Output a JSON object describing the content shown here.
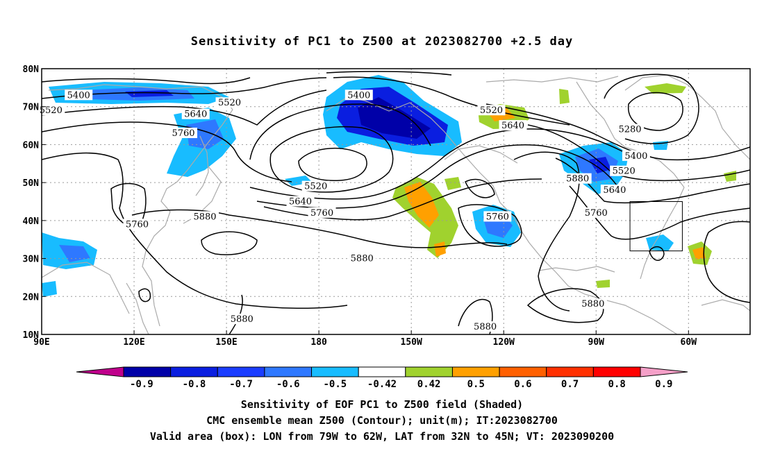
{
  "title": "Sensitivity of PC1 to Z500 at 2023082700 +2.5 day",
  "map": {
    "lat_labels": [
      "80N",
      "70N",
      "60N",
      "50N",
      "40N",
      "30N",
      "20N",
      "10N"
    ],
    "lon_labels": [
      "90E",
      "120E",
      "150E",
      "180",
      "150W",
      "120W",
      "90W",
      "60W"
    ],
    "lon_range": [
      90,
      320
    ],
    "lat_range": [
      10,
      80
    ],
    "grid": "dotted",
    "colors": {
      "contour": "#000000",
      "coastline": "#aaaaaa",
      "grid": "#999999",
      "box": "#000000"
    },
    "contour_labels": [
      {
        "text": "5400",
        "lon": 102,
        "lat": 73
      },
      {
        "text": "5520",
        "lon": 93,
        "lat": 69
      },
      {
        "text": "5520",
        "lon": 151,
        "lat": 71
      },
      {
        "text": "5640",
        "lon": 140,
        "lat": 68
      },
      {
        "text": "5760",
        "lon": 136,
        "lat": 63
      },
      {
        "text": "5760",
        "lon": 121,
        "lat": 39
      },
      {
        "text": "5880",
        "lon": 143,
        "lat": 41
      },
      {
        "text": "5880",
        "lon": 155,
        "lat": 14
      },
      {
        "text": "5400",
        "lon": 193,
        "lat": 73
      },
      {
        "text": "5520",
        "lon": 236,
        "lat": 69
      },
      {
        "text": "5640",
        "lon": 243,
        "lat": 65
      },
      {
        "text": "5520",
        "lon": 179,
        "lat": 49
      },
      {
        "text": "5640",
        "lon": 174,
        "lat": 45
      },
      {
        "text": "5760",
        "lon": 181,
        "lat": 42
      },
      {
        "text": "5880",
        "lon": 194,
        "lat": 30
      },
      {
        "text": "5760",
        "lon": 238,
        "lat": 41
      },
      {
        "text": "5880",
        "lon": 234,
        "lat": 12
      },
      {
        "text": "5880",
        "lon": 264,
        "lat": 51
      },
      {
        "text": "5280",
        "lon": 281,
        "lat": 64
      },
      {
        "text": "5400",
        "lon": 283,
        "lat": 57
      },
      {
        "text": "5520",
        "lon": 279,
        "lat": 53
      },
      {
        "text": "5640",
        "lon": 276,
        "lat": 48
      },
      {
        "text": "5760",
        "lon": 270,
        "lat": 42
      },
      {
        "text": "5880",
        "lon": 269,
        "lat": 18
      }
    ],
    "valid_box": {
      "lon_w": 281,
      "lon_e": 298,
      "lat_s": 32,
      "lat_n": 45
    }
  },
  "colorbar": {
    "labels": [
      "-0.9",
      "-0.8",
      "-0.7",
      "-0.6",
      "-0.5",
      "-0.42",
      "0.42",
      "0.5",
      "0.6",
      "0.7",
      "0.8",
      "0.9"
    ],
    "colors": [
      "#0000a8",
      "#0a1ee0",
      "#1a3cff",
      "#2e78ff",
      "#18bcff",
      "#ffffff",
      "#a0d22e",
      "#ffa000",
      "#ff6000",
      "#ff3000",
      "#ff0000"
    ],
    "low_extend_color": "#c0008c",
    "high_extend_color": "#f5a0c8"
  },
  "caption": {
    "line1": "Sensitivity of EOF PC1 to Z500 field (Shaded)",
    "line2": "CMC ensemble mean Z500 (Contour); unit(m); IT:2023082700",
    "line3": "Valid area (box): LON from 79W to 62W, LAT from 32N to 45N; VT: 2023090200"
  }
}
